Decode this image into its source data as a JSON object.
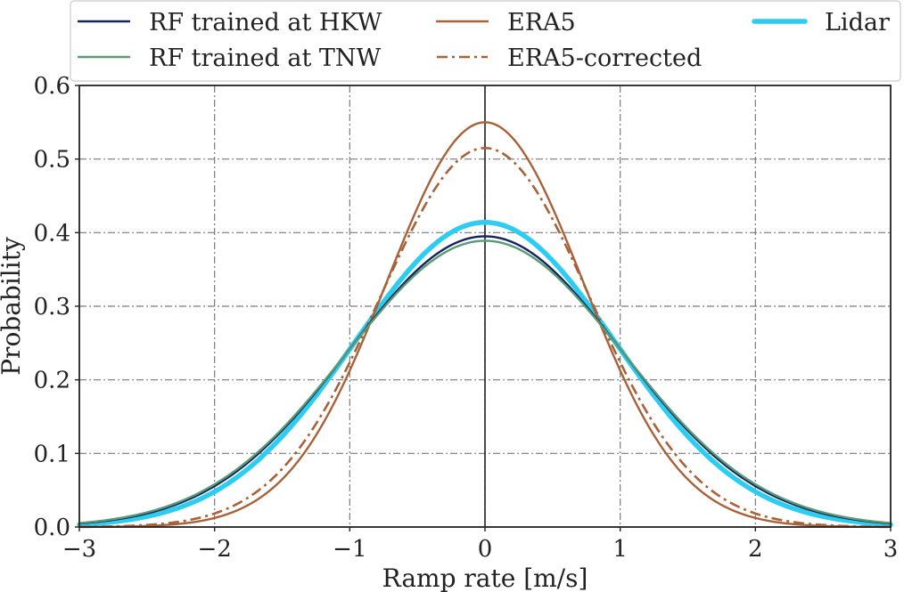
{
  "chart_data": {
    "type": "line",
    "title": "",
    "xlabel": "Ramp rate [m/s]",
    "ylabel": "Probability",
    "xlim": [
      -3,
      3
    ],
    "ylim": [
      0,
      0.6
    ],
    "xticks": [
      -3,
      -2,
      -1,
      0,
      1,
      2,
      3
    ],
    "xtick_labels": [
      "−3",
      "−2",
      "−1",
      "0",
      "1",
      "2",
      "3"
    ],
    "yticks": [
      0.0,
      0.1,
      0.2,
      0.3,
      0.4,
      0.5,
      0.6
    ],
    "ytick_labels": [
      "0.0",
      "0.1",
      "0.2",
      "0.3",
      "0.4",
      "0.5",
      "0.6"
    ],
    "grid": true,
    "vertical_reference_x": 0,
    "legend_position": "top, above plot, 3 columns",
    "series": [
      {
        "name": "RF trained at HKW",
        "style": "solid",
        "color": "#13235b",
        "peak": 0.395,
        "x": [
          -3.0,
          -2.5,
          -2.0,
          -1.5,
          -1.0,
          -0.8,
          -0.5,
          -0.3,
          0.0,
          0.3,
          0.5,
          0.8,
          1.0,
          1.5,
          2.0,
          2.5,
          3.0
        ],
        "values": [
          0.004,
          0.017,
          0.054,
          0.13,
          0.242,
          0.289,
          0.348,
          0.378,
          0.395,
          0.378,
          0.348,
          0.289,
          0.242,
          0.13,
          0.054,
          0.017,
          0.004
        ]
      },
      {
        "name": "RF trained at TNW",
        "style": "solid",
        "color": "#5a9a78",
        "peak": 0.389,
        "x": [
          -3.0,
          -2.5,
          -2.0,
          -1.5,
          -1.0,
          -0.8,
          -0.5,
          -0.3,
          0.0,
          0.3,
          0.5,
          0.8,
          1.0,
          1.5,
          2.0,
          2.5,
          3.0
        ],
        "values": [
          0.005,
          0.019,
          0.057,
          0.133,
          0.241,
          0.286,
          0.343,
          0.372,
          0.389,
          0.372,
          0.343,
          0.286,
          0.241,
          0.133,
          0.057,
          0.019,
          0.005
        ]
      },
      {
        "name": "ERA5",
        "style": "solid",
        "color": "#a8623a",
        "peak": 0.55,
        "x": [
          -3.0,
          -2.5,
          -2.0,
          -1.5,
          -1.0,
          -0.8,
          -0.5,
          -0.3,
          0.0,
          0.3,
          0.5,
          0.8,
          1.0,
          1.5,
          2.0,
          2.5,
          3.0
        ],
        "values": [
          0.0003,
          0.002,
          0.014,
          0.068,
          0.202,
          0.279,
          0.407,
          0.494,
          0.55,
          0.494,
          0.407,
          0.279,
          0.202,
          0.068,
          0.014,
          0.002,
          0.0003
        ]
      },
      {
        "name": "ERA5-corrected",
        "style": "dashdot",
        "color": "#a8623a",
        "peak": 0.515,
        "x": [
          -3.0,
          -2.5,
          -2.0,
          -1.5,
          -1.0,
          -0.8,
          -0.5,
          -0.3,
          0.0,
          0.3,
          0.5,
          0.8,
          1.0,
          1.5,
          2.0,
          2.5,
          3.0
        ],
        "values": [
          0.0006,
          0.004,
          0.022,
          0.085,
          0.218,
          0.285,
          0.397,
          0.469,
          0.515,
          0.469,
          0.397,
          0.285,
          0.218,
          0.085,
          0.022,
          0.004,
          0.0006
        ]
      },
      {
        "name": "Lidar",
        "style": "solid-thick",
        "color": "#2ccdf0",
        "peak": 0.414,
        "x": [
          -3.0,
          -2.5,
          -2.0,
          -1.5,
          -1.0,
          -0.8,
          -0.5,
          -0.3,
          0.0,
          0.3,
          0.5,
          0.8,
          1.0,
          1.5,
          2.0,
          2.5,
          3.0
        ],
        "values": [
          0.003,
          0.014,
          0.047,
          0.121,
          0.24,
          0.291,
          0.357,
          0.393,
          0.414,
          0.393,
          0.357,
          0.291,
          0.24,
          0.121,
          0.047,
          0.014,
          0.003
        ]
      }
    ]
  }
}
